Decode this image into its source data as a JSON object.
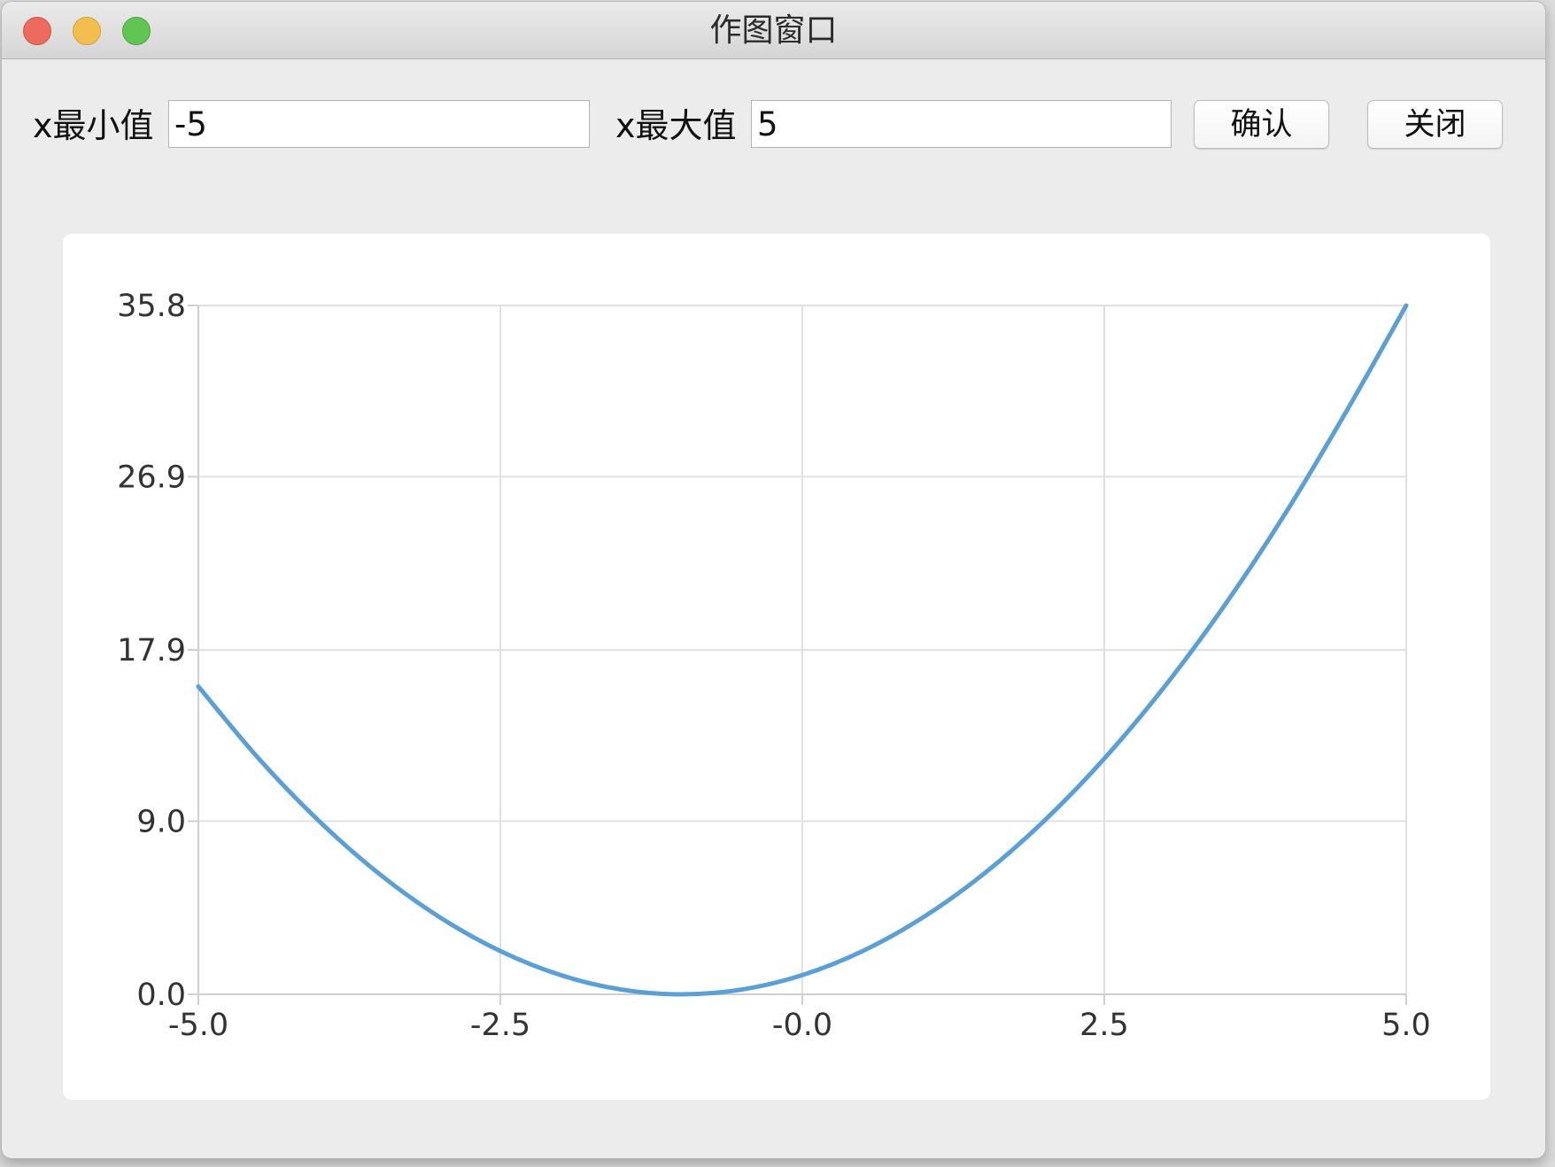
{
  "window": {
    "title": "作图窗口"
  },
  "controls": {
    "xmin_label": "x最小值",
    "xmin_value": "-5",
    "xmax_label": "x最大值",
    "xmax_value": "5",
    "confirm_label": "确认",
    "close_label": "关闭"
  },
  "colors": {
    "series": "#5aa0d6",
    "grid": "#e0e0e0",
    "close": "#ec6a5e",
    "minimize": "#f4be4f",
    "maximize": "#61c554"
  },
  "chart_data": {
    "type": "line",
    "title": "",
    "xlabel": "",
    "ylabel": "",
    "xlim": [
      -5.0,
      5.0
    ],
    "ylim": [
      0.0,
      35.8
    ],
    "grid": true,
    "xticks": [
      -5.0,
      -2.5,
      0.0,
      2.5,
      5.0
    ],
    "xtick_labels": [
      "-5.0",
      "-2.5",
      "-0.0",
      "2.5",
      "5.0"
    ],
    "yticks": [
      0.0,
      9.0,
      17.9,
      26.9,
      35.8
    ],
    "ytick_labels": [
      "0.0",
      "9.0",
      "17.9",
      "26.9",
      "35.8"
    ],
    "series": [
      {
        "x": [
          -5.0,
          -4.5,
          -4.0,
          -3.5,
          -3.0,
          -2.5,
          -2.0,
          -1.5,
          -1.0,
          -0.5,
          0.0,
          0.5,
          1.0,
          1.5,
          2.0,
          2.5,
          3.0,
          3.5,
          4.0,
          4.5,
          5.0
        ],
        "y": [
          16.0,
          12.25,
          9.0,
          6.25,
          4.0,
          2.25,
          1.0,
          0.25,
          0.0,
          0.25,
          1.0,
          2.25,
          4.0,
          6.25,
          9.0,
          12.25,
          16.0,
          20.25,
          25.0,
          30.25,
          36.0
        ]
      }
    ]
  }
}
